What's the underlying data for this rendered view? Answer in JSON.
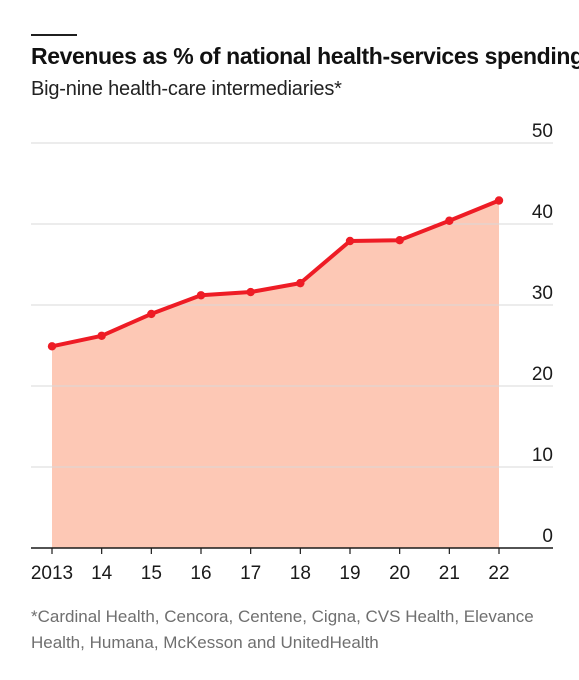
{
  "chart_data": {
    "type": "area",
    "title": "Revenues as % of national health-services spending",
    "subtitle": "Big-nine health-care intermediaries*",
    "x": [
      2013,
      2014,
      2015,
      2016,
      2017,
      2018,
      2019,
      2020,
      2021,
      2022
    ],
    "x_tick_labels": [
      "2013",
      "14",
      "15",
      "16",
      "17",
      "18",
      "19",
      "20",
      "21",
      "22"
    ],
    "values": [
      24.9,
      26.2,
      28.9,
      31.2,
      31.6,
      32.7,
      37.9,
      38.0,
      40.4,
      42.9
    ],
    "ylim": [
      0,
      50
    ],
    "y_ticks": [
      0,
      10,
      20,
      30,
      40,
      50
    ],
    "y_tick_labels": [
      "0",
      "10",
      "20",
      "30",
      "40",
      "50"
    ],
    "y_axis_side": "right",
    "grid": "horizontal",
    "line_color": "#ee1c25",
    "fill_color": "#fdc8b5",
    "gridline_color": "#d9d9d9",
    "footnote": "*Cardinal Health, Cencora, Centene, Cigna, CVS Health, Elevance Health, Humana, McKesson and UnitedHealth"
  }
}
